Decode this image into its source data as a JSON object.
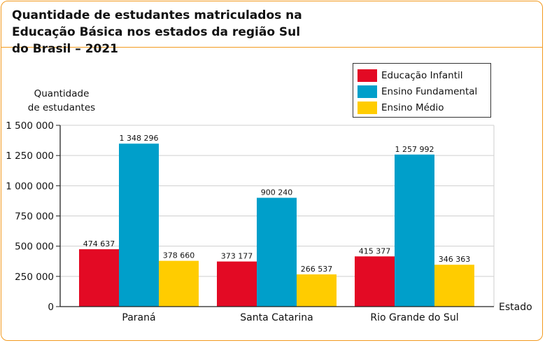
{
  "title": "Quantidade de estudantes matriculados na Educação Básica nos estados da região Sul do Brasil – 2021",
  "colors": {
    "frame": "#f29a1f",
    "infantil": "#e30a24",
    "fundamental": "#009fca",
    "medio": "#ffcc00"
  },
  "chart_data": {
    "type": "bar",
    "title": "Quantidade de estudantes matriculados na Educação Básica nos estados da região Sul do Brasil – 2021",
    "ylabel": [
      "Quantidade",
      "de estudantes"
    ],
    "xlabel": "Estado",
    "categories": [
      "Paraná",
      "Santa Catarina",
      "Rio Grande do Sul"
    ],
    "ylim": [
      0,
      1500000
    ],
    "yticks": [
      0,
      250000,
      500000,
      750000,
      1000000,
      1250000,
      1500000
    ],
    "ytick_labels": [
      "0",
      "250 000",
      "500 000",
      "750 000",
      "1 000 000",
      "1 250 000",
      "1 500 000"
    ],
    "grid": "horizontal",
    "legend": "top-right",
    "series": [
      {
        "name": "Educação Infantil",
        "color": "#e30a24",
        "values": [
          474637,
          373177,
          415377
        ],
        "labels": [
          "474 637",
          "373 177",
          "415 377"
        ]
      },
      {
        "name": "Ensino Fundamental",
        "color": "#009fca",
        "values": [
          1348296,
          900240,
          1257992
        ],
        "labels": [
          "1 348 296",
          "900 240",
          "1 257 992"
        ]
      },
      {
        "name": "Ensino Médio",
        "color": "#ffcc00",
        "values": [
          378660,
          266537,
          346363
        ],
        "labels": [
          "378 660",
          "266 537",
          "346 363"
        ]
      }
    ]
  }
}
